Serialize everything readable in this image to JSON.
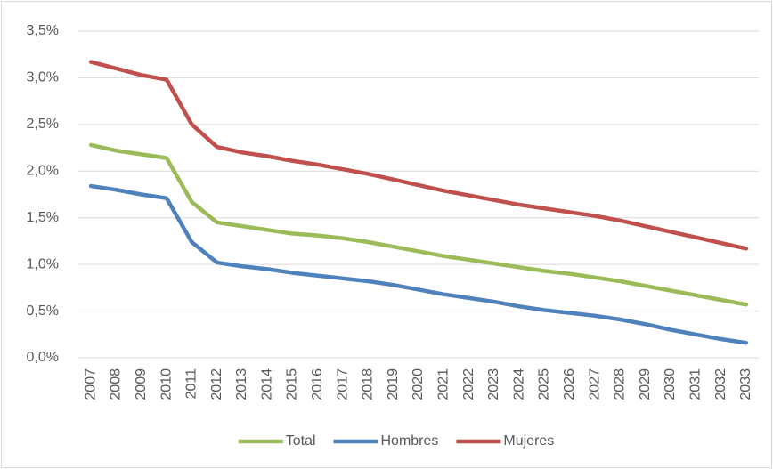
{
  "chart_data": {
    "type": "line",
    "categories": [
      "2007",
      "2008",
      "2009",
      "2010",
      "2011",
      "2012",
      "2013",
      "2014",
      "2015",
      "2016",
      "2017",
      "2018",
      "2019",
      "2020",
      "2021",
      "2022",
      "2023",
      "2024",
      "2025",
      "2026",
      "2027",
      "2028",
      "2029",
      "2030",
      "2031",
      "2032",
      "2033"
    ],
    "series": [
      {
        "name": "Total",
        "color": "#9bbb59",
        "values": [
          2.28,
          2.22,
          2.18,
          2.14,
          1.67,
          1.45,
          1.41,
          1.37,
          1.33,
          1.31,
          1.28,
          1.24,
          1.19,
          1.14,
          1.09,
          1.05,
          1.01,
          0.97,
          0.93,
          0.9,
          0.86,
          0.82,
          0.77,
          0.72,
          0.67,
          0.62,
          0.57
        ]
      },
      {
        "name": "Hombres",
        "color": "#4f81bd",
        "values": [
          1.84,
          1.8,
          1.75,
          1.71,
          1.24,
          1.02,
          0.98,
          0.95,
          0.91,
          0.88,
          0.85,
          0.82,
          0.78,
          0.73,
          0.68,
          0.64,
          0.6,
          0.55,
          0.51,
          0.48,
          0.45,
          0.41,
          0.36,
          0.3,
          0.25,
          0.2,
          0.16
        ]
      },
      {
        "name": "Mujeres",
        "color": "#c0504d",
        "values": [
          3.17,
          3.1,
          3.03,
          2.98,
          2.5,
          2.26,
          2.2,
          2.16,
          2.11,
          2.07,
          2.02,
          1.97,
          1.91,
          1.85,
          1.79,
          1.74,
          1.69,
          1.64,
          1.6,
          1.56,
          1.52,
          1.47,
          1.41,
          1.35,
          1.29,
          1.23,
          1.17
        ]
      }
    ],
    "ylim": [
      0,
      3.5
    ],
    "yticks": [
      {
        "value": 0,
        "label": "0,0%"
      },
      {
        "value": 0.5,
        "label": "0,5%"
      },
      {
        "value": 1,
        "label": "1,0%"
      },
      {
        "value": 1.5,
        "label": "1,5%"
      },
      {
        "value": 2,
        "label": "2,0%"
      },
      {
        "value": 2.5,
        "label": "2,5%"
      },
      {
        "value": 3,
        "label": "3,0%"
      },
      {
        "value": 3.5,
        "label": "3,5%"
      }
    ],
    "grid": true,
    "legend": "bottom"
  }
}
